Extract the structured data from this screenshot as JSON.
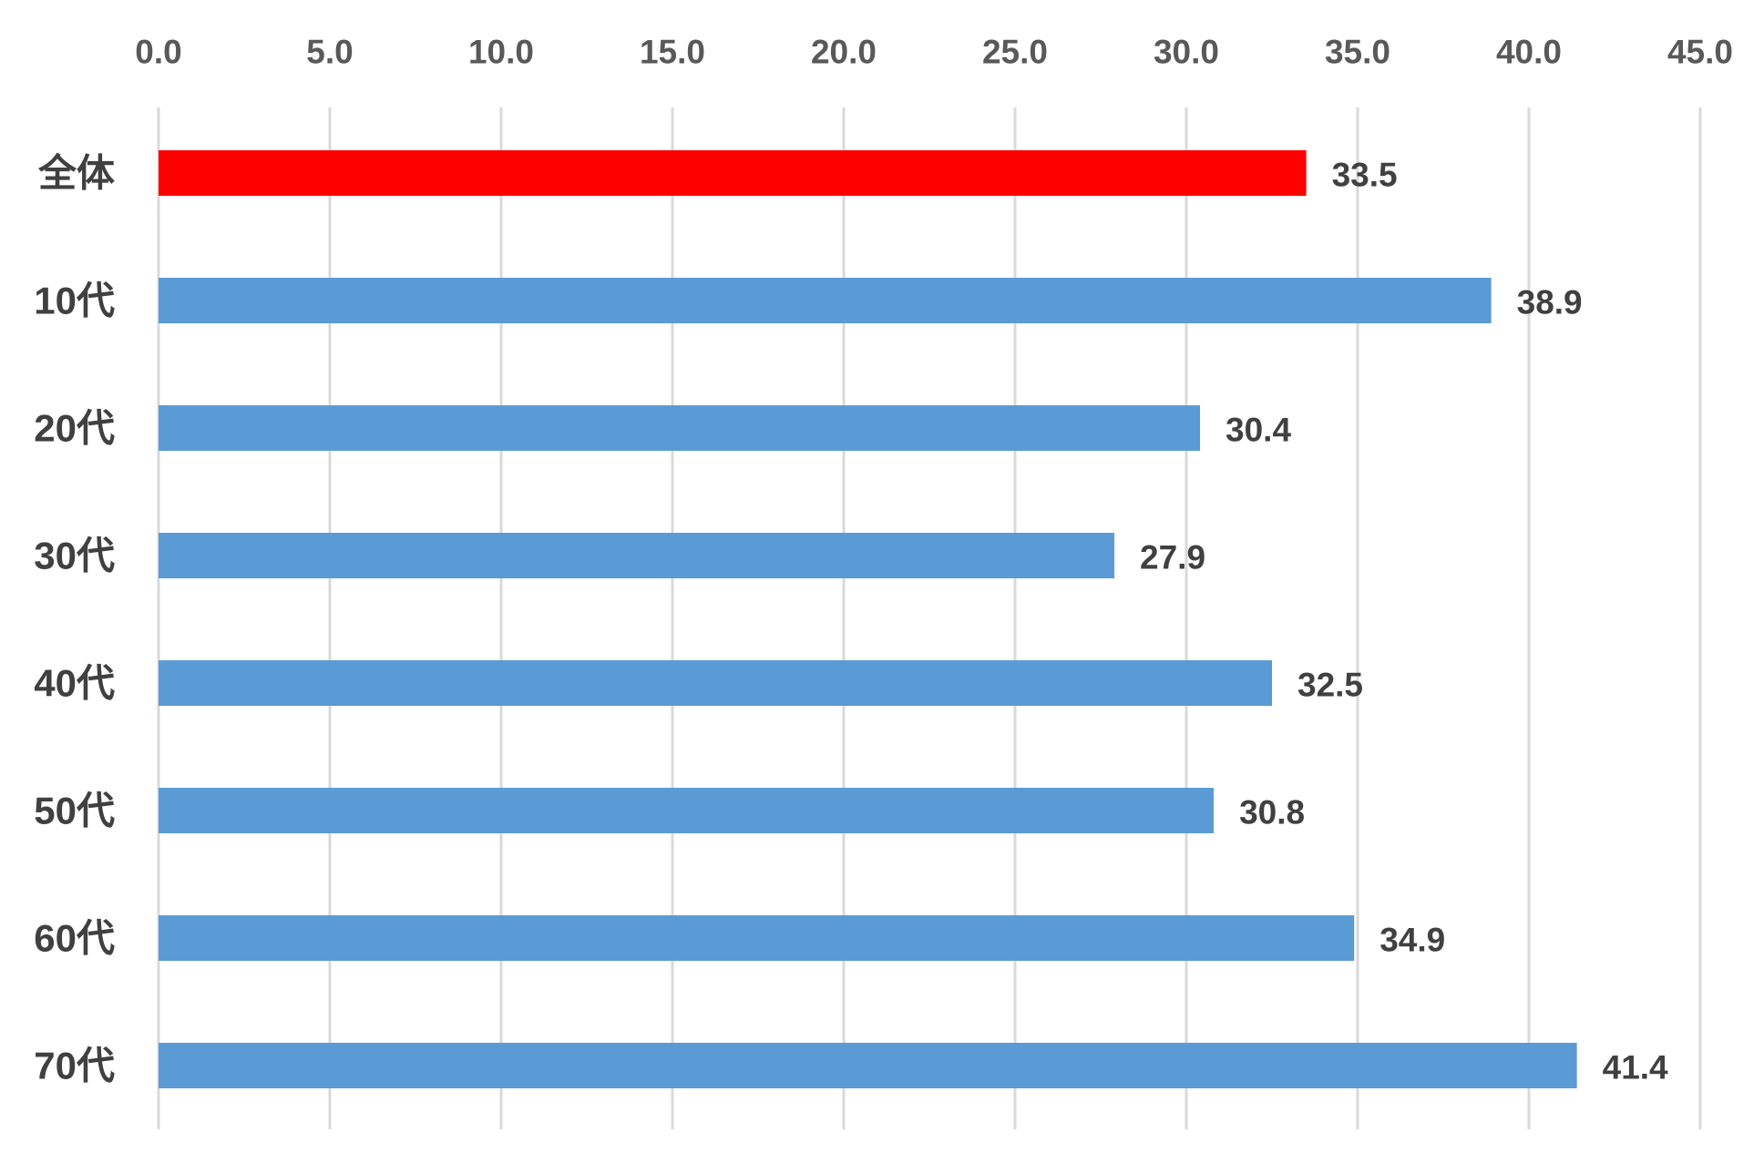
{
  "chart_data": {
    "type": "bar",
    "orientation": "horizontal",
    "categories": [
      "全体",
      "10代",
      "20代",
      "30代",
      "40代",
      "50代",
      "60代",
      "70代"
    ],
    "values": [
      33.5,
      38.9,
      30.4,
      27.9,
      32.5,
      30.8,
      34.9,
      41.4
    ],
    "value_labels": [
      "33.5",
      "38.9",
      "30.4",
      "27.9",
      "32.5",
      "30.8",
      "34.9",
      "41.4"
    ],
    "x_ticks": [
      "0.0",
      "5.0",
      "10.0",
      "15.0",
      "20.0",
      "25.0",
      "30.0",
      "35.0",
      "40.0",
      "45.0"
    ],
    "xlim": [
      0,
      45
    ],
    "x_axis_position": "top",
    "grid": true,
    "legend": "none",
    "colors": {
      "highlight": "#ff0000",
      "default": "#5b9bd5"
    },
    "highlight_category": "全体"
  }
}
